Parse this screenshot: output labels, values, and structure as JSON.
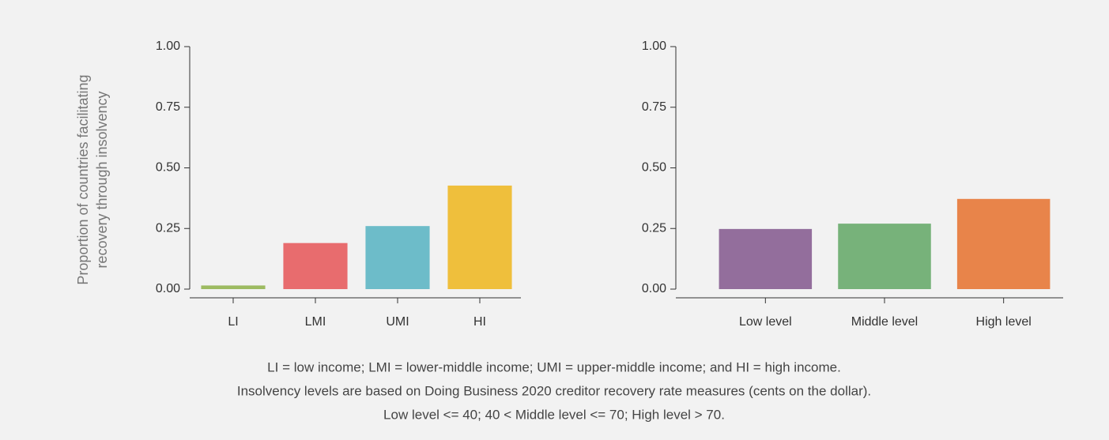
{
  "chart_data": [
    {
      "type": "bar",
      "ylabel": [
        "Proportion of countries facilitating",
        "recovery through insolvency"
      ],
      "categories": [
        "LI",
        "LMI",
        "UMI",
        "HI"
      ],
      "values": [
        0.015,
        0.19,
        0.26,
        0.427
      ],
      "colors": [
        "#9dbb61",
        "#e86c6e",
        "#6dbcc9",
        "#efbf3c"
      ],
      "ylim": [
        0,
        1
      ],
      "yticks": [
        {
          "value": 0,
          "label": "0.00"
        },
        {
          "value": 0.25,
          "label": "0.25"
        },
        {
          "value": 0.5,
          "label": "0.50"
        },
        {
          "value": 0.75,
          "label": "0.75"
        },
        {
          "value": 1,
          "label": "1.00"
        }
      ]
    },
    {
      "type": "bar",
      "categories": [
        "Low level",
        "Middle level",
        "High level"
      ],
      "values": [
        0.248,
        0.27,
        0.372
      ],
      "colors": [
        "#936e9c",
        "#77b27a",
        "#e8844a"
      ],
      "ylim": [
        0,
        1
      ],
      "yticks": [
        {
          "value": 0,
          "label": "0.00"
        },
        {
          "value": 0.25,
          "label": "0.25"
        },
        {
          "value": 0.5,
          "label": "0.50"
        },
        {
          "value": 0.75,
          "label": "0.75"
        },
        {
          "value": 1,
          "label": "1.00"
        }
      ]
    }
  ],
  "notes": [
    "LI = low income; LMI = lower-middle income; UMI = upper-middle income; and HI = high income.",
    "Insolvency levels are based on Doing Business 2020 creditor recovery rate measures (cents on the dollar).",
    "Low level <= 40; 40 < Middle level <= 70; High level > 70."
  ]
}
